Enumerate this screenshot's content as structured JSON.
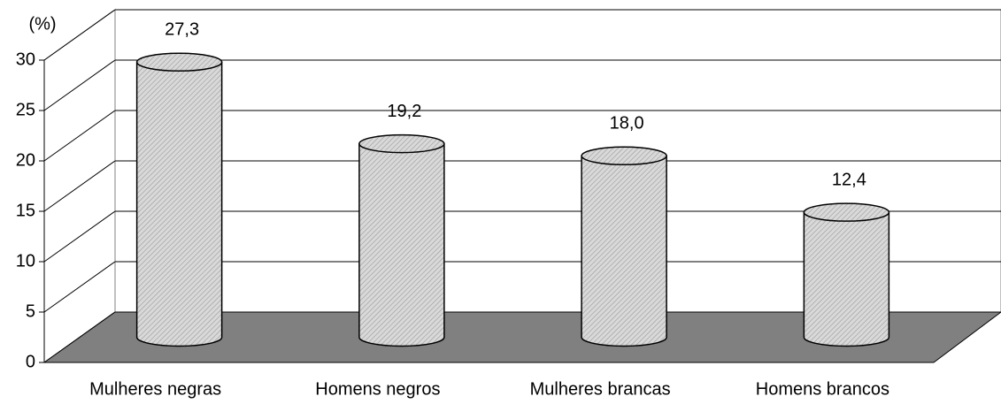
{
  "chart_data": {
    "type": "bar",
    "y_axis_label": "(%)",
    "categories": [
      "Mulheres negras",
      "Homens negros",
      "Mulheres brancas",
      "Homens brancos"
    ],
    "values": [
      27.3,
      19.2,
      18.0,
      12.4
    ],
    "value_labels": [
      "27,3",
      "19,2",
      "18,0",
      "12,4"
    ],
    "color": "#c8c8c8",
    "ylim": [
      0,
      30
    ],
    "yticks": [
      0,
      5,
      10,
      15,
      20,
      25,
      30
    ],
    "grid": true
  }
}
